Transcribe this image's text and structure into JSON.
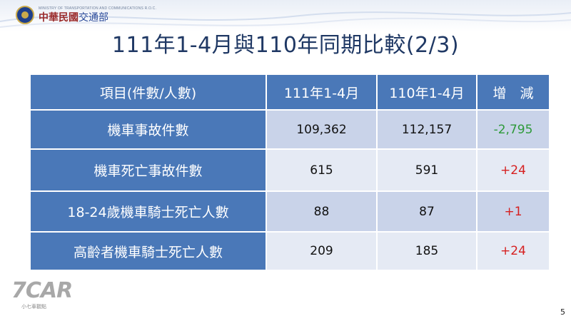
{
  "header": {
    "org_en": "MINISTRY OF TRANSPORTATION AND COMMUNICATIONS R.O.C.",
    "org_zh_left": "中華民國",
    "org_zh_right": "交通部"
  },
  "title": "111年1-4月與110年同期比較(2/3)",
  "table": {
    "headers": [
      "項目(件數/人數)",
      "111年1-4月",
      "110年1-4月",
      "增　減"
    ],
    "rows": [
      {
        "item": "機車事故件數",
        "y111": "109,362",
        "y110": "112,157",
        "diff": "-2,795"
      },
      {
        "item": "機車死亡事故件數",
        "y111": "615",
        "y110": "591",
        "diff": "+24"
      },
      {
        "item": "18-24歲機車騎士死亡人數",
        "y111": "88",
        "y110": "87",
        "diff": "+1"
      },
      {
        "item": "高齡者機車騎士死亡人數",
        "y111": "209",
        "y110": "185",
        "diff": "+24"
      }
    ]
  },
  "watermark": {
    "mark": "7CAR",
    "sub": "小七車觀點"
  },
  "page_number": "5",
  "colors": {
    "header_blue": "#4a78b8",
    "title": "#1f3864",
    "negative": "#2e9a3a",
    "positive": "#d62020"
  }
}
